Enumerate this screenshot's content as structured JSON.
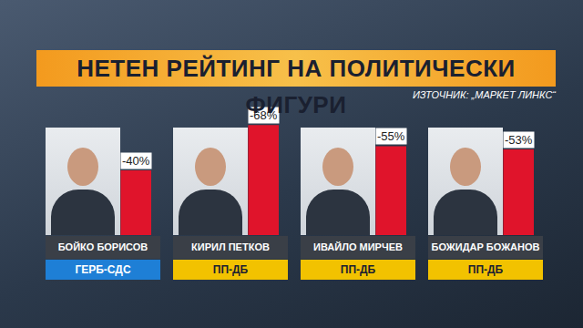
{
  "chart_data": {
    "type": "bar",
    "title": "НЕТЕН РЕЙТИНГ НА ПОЛИТИЧЕСКИ ФИГУРИ",
    "source": "ИЗТОЧНИК: „МАРКЕТ ЛИНКС“",
    "categories": [
      "БОЙКО БОРИСОВ",
      "КИРИЛ ПЕТКОВ",
      "ИВАЙЛО МИРЧЕВ",
      "БОЖИДАР БОЖАНОВ"
    ],
    "parties": [
      "ГЕРБ-СДС",
      "ПП-ДБ",
      "ПП-ДБ",
      "ПП-ДБ"
    ],
    "values": [
      -40,
      -68,
      -55,
      -53
    ],
    "value_labels": [
      "-40%",
      "-68%",
      "-55%",
      "-53%"
    ],
    "color": "#e0142b",
    "ylim": [
      0,
      -80
    ],
    "yticks": [],
    "data_labels": true,
    "tick_labels": false,
    "grid": false
  }
}
